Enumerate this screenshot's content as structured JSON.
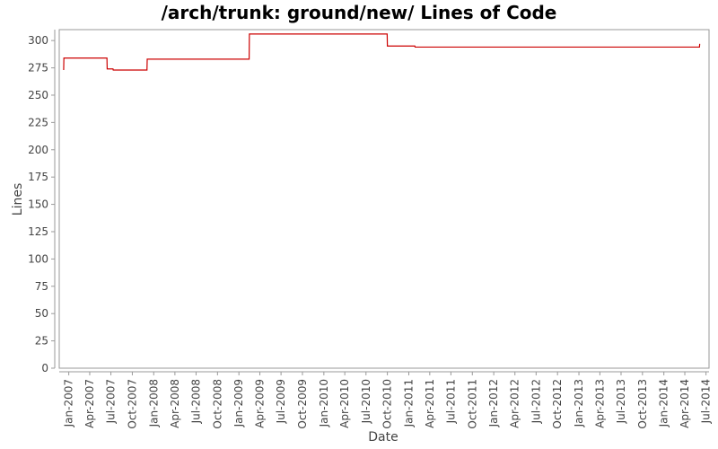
{
  "chart_data": {
    "type": "line",
    "title": "/arch/trunk: ground/new/ Lines of Code",
    "xlabel": "Date",
    "ylabel": "Lines",
    "ylim": [
      0,
      310
    ],
    "xlim": [
      "2006-11-21",
      "2014-07-14"
    ],
    "yticks": [
      0,
      25,
      50,
      75,
      100,
      125,
      150,
      175,
      200,
      225,
      250,
      275,
      300
    ],
    "xticks": [
      {
        "label": "Jan-2007",
        "date": "2007-01-01"
      },
      {
        "label": "Apr-2007",
        "date": "2007-04-01"
      },
      {
        "label": "Jul-2007",
        "date": "2007-07-01"
      },
      {
        "label": "Oct-2007",
        "date": "2007-10-01"
      },
      {
        "label": "Jan-2008",
        "date": "2008-01-01"
      },
      {
        "label": "Apr-2008",
        "date": "2008-04-01"
      },
      {
        "label": "Jul-2008",
        "date": "2008-07-01"
      },
      {
        "label": "Oct-2008",
        "date": "2008-10-01"
      },
      {
        "label": "Jan-2009",
        "date": "2009-01-01"
      },
      {
        "label": "Apr-2009",
        "date": "2009-04-01"
      },
      {
        "label": "Jul-2009",
        "date": "2009-07-01"
      },
      {
        "label": "Oct-2009",
        "date": "2009-10-01"
      },
      {
        "label": "Jan-2010",
        "date": "2010-01-01"
      },
      {
        "label": "Apr-2010",
        "date": "2010-04-01"
      },
      {
        "label": "Jul-2010",
        "date": "2010-07-01"
      },
      {
        "label": "Oct-2010",
        "date": "2010-10-01"
      },
      {
        "label": "Jan-2011",
        "date": "2011-01-01"
      },
      {
        "label": "Apr-2011",
        "date": "2011-04-01"
      },
      {
        "label": "Jul-2011",
        "date": "2011-07-01"
      },
      {
        "label": "Oct-2011",
        "date": "2011-10-01"
      },
      {
        "label": "Jan-2012",
        "date": "2012-01-01"
      },
      {
        "label": "Apr-2012",
        "date": "2012-04-01"
      },
      {
        "label": "Jul-2012",
        "date": "2012-07-01"
      },
      {
        "label": "Oct-2012",
        "date": "2012-10-01"
      },
      {
        "label": "Jan-2013",
        "date": "2013-01-01"
      },
      {
        "label": "Apr-2013",
        "date": "2013-04-01"
      },
      {
        "label": "Jul-2013",
        "date": "2013-07-01"
      },
      {
        "label": "Oct-2013",
        "date": "2013-10-01"
      },
      {
        "label": "Jan-2014",
        "date": "2014-01-01"
      },
      {
        "label": "Apr-2014",
        "date": "2014-04-01"
      },
      {
        "label": "Jul-2014",
        "date": "2014-07-01"
      }
    ],
    "step": true,
    "grid": false,
    "line_color": "#cc0000",
    "series": [
      {
        "points": [
          {
            "x": "2006-12-10",
            "y": 273
          },
          {
            "x": "2006-12-11",
            "y": 284
          },
          {
            "x": "2007-06-14",
            "y": 284
          },
          {
            "x": "2007-06-15",
            "y": 274
          },
          {
            "x": "2007-07-10",
            "y": 274
          },
          {
            "x": "2007-07-11",
            "y": 273
          },
          {
            "x": "2007-12-03",
            "y": 273
          },
          {
            "x": "2007-12-04",
            "y": 283
          },
          {
            "x": "2009-02-14",
            "y": 283
          },
          {
            "x": "2009-02-15",
            "y": 306
          },
          {
            "x": "2010-09-30",
            "y": 306
          },
          {
            "x": "2010-10-01",
            "y": 295
          },
          {
            "x": "2011-01-27",
            "y": 295
          },
          {
            "x": "2011-01-28",
            "y": 294
          },
          {
            "x": "2014-06-03",
            "y": 294
          },
          {
            "x": "2014-06-04",
            "y": 297
          }
        ]
      }
    ]
  }
}
